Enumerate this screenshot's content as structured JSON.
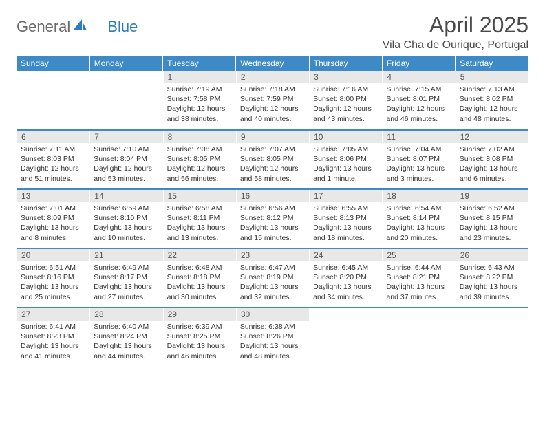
{
  "logo": {
    "part1": "General",
    "part2": "Blue"
  },
  "title": "April 2025",
  "location": "Vila Cha de Ourique, Portugal",
  "colors": {
    "brand_blue": "#3d8ac7",
    "header_text": "#4a4a4a",
    "daynum_bg": "#e8e8e8",
    "body_text": "#333333"
  },
  "day_headers": [
    "Sunday",
    "Monday",
    "Tuesday",
    "Wednesday",
    "Thursday",
    "Friday",
    "Saturday"
  ],
  "weeks": [
    [
      null,
      null,
      {
        "n": "1",
        "sr": "7:19 AM",
        "ss": "7:58 PM",
        "dl": "Daylight: 12 hours and 38 minutes."
      },
      {
        "n": "2",
        "sr": "7:18 AM",
        "ss": "7:59 PM",
        "dl": "Daylight: 12 hours and 40 minutes."
      },
      {
        "n": "3",
        "sr": "7:16 AM",
        "ss": "8:00 PM",
        "dl": "Daylight: 12 hours and 43 minutes."
      },
      {
        "n": "4",
        "sr": "7:15 AM",
        "ss": "8:01 PM",
        "dl": "Daylight: 12 hours and 46 minutes."
      },
      {
        "n": "5",
        "sr": "7:13 AM",
        "ss": "8:02 PM",
        "dl": "Daylight: 12 hours and 48 minutes."
      }
    ],
    [
      {
        "n": "6",
        "sr": "7:11 AM",
        "ss": "8:03 PM",
        "dl": "Daylight: 12 hours and 51 minutes."
      },
      {
        "n": "7",
        "sr": "7:10 AM",
        "ss": "8:04 PM",
        "dl": "Daylight: 12 hours and 53 minutes."
      },
      {
        "n": "8",
        "sr": "7:08 AM",
        "ss": "8:05 PM",
        "dl": "Daylight: 12 hours and 56 minutes."
      },
      {
        "n": "9",
        "sr": "7:07 AM",
        "ss": "8:05 PM",
        "dl": "Daylight: 12 hours and 58 minutes."
      },
      {
        "n": "10",
        "sr": "7:05 AM",
        "ss": "8:06 PM",
        "dl": "Daylight: 13 hours and 1 minute."
      },
      {
        "n": "11",
        "sr": "7:04 AM",
        "ss": "8:07 PM",
        "dl": "Daylight: 13 hours and 3 minutes."
      },
      {
        "n": "12",
        "sr": "7:02 AM",
        "ss": "8:08 PM",
        "dl": "Daylight: 13 hours and 6 minutes."
      }
    ],
    [
      {
        "n": "13",
        "sr": "7:01 AM",
        "ss": "8:09 PM",
        "dl": "Daylight: 13 hours and 8 minutes."
      },
      {
        "n": "14",
        "sr": "6:59 AM",
        "ss": "8:10 PM",
        "dl": "Daylight: 13 hours and 10 minutes."
      },
      {
        "n": "15",
        "sr": "6:58 AM",
        "ss": "8:11 PM",
        "dl": "Daylight: 13 hours and 13 minutes."
      },
      {
        "n": "16",
        "sr": "6:56 AM",
        "ss": "8:12 PM",
        "dl": "Daylight: 13 hours and 15 minutes."
      },
      {
        "n": "17",
        "sr": "6:55 AM",
        "ss": "8:13 PM",
        "dl": "Daylight: 13 hours and 18 minutes."
      },
      {
        "n": "18",
        "sr": "6:54 AM",
        "ss": "8:14 PM",
        "dl": "Daylight: 13 hours and 20 minutes."
      },
      {
        "n": "19",
        "sr": "6:52 AM",
        "ss": "8:15 PM",
        "dl": "Daylight: 13 hours and 23 minutes."
      }
    ],
    [
      {
        "n": "20",
        "sr": "6:51 AM",
        "ss": "8:16 PM",
        "dl": "Daylight: 13 hours and 25 minutes."
      },
      {
        "n": "21",
        "sr": "6:49 AM",
        "ss": "8:17 PM",
        "dl": "Daylight: 13 hours and 27 minutes."
      },
      {
        "n": "22",
        "sr": "6:48 AM",
        "ss": "8:18 PM",
        "dl": "Daylight: 13 hours and 30 minutes."
      },
      {
        "n": "23",
        "sr": "6:47 AM",
        "ss": "8:19 PM",
        "dl": "Daylight: 13 hours and 32 minutes."
      },
      {
        "n": "24",
        "sr": "6:45 AM",
        "ss": "8:20 PM",
        "dl": "Daylight: 13 hours and 34 minutes."
      },
      {
        "n": "25",
        "sr": "6:44 AM",
        "ss": "8:21 PM",
        "dl": "Daylight: 13 hours and 37 minutes."
      },
      {
        "n": "26",
        "sr": "6:43 AM",
        "ss": "8:22 PM",
        "dl": "Daylight: 13 hours and 39 minutes."
      }
    ],
    [
      {
        "n": "27",
        "sr": "6:41 AM",
        "ss": "8:23 PM",
        "dl": "Daylight: 13 hours and 41 minutes."
      },
      {
        "n": "28",
        "sr": "6:40 AM",
        "ss": "8:24 PM",
        "dl": "Daylight: 13 hours and 44 minutes."
      },
      {
        "n": "29",
        "sr": "6:39 AM",
        "ss": "8:25 PM",
        "dl": "Daylight: 13 hours and 46 minutes."
      },
      {
        "n": "30",
        "sr": "6:38 AM",
        "ss": "8:26 PM",
        "dl": "Daylight: 13 hours and 48 minutes."
      },
      null,
      null,
      null
    ]
  ],
  "labels": {
    "sunrise_prefix": "Sunrise: ",
    "sunset_prefix": "Sunset: "
  }
}
